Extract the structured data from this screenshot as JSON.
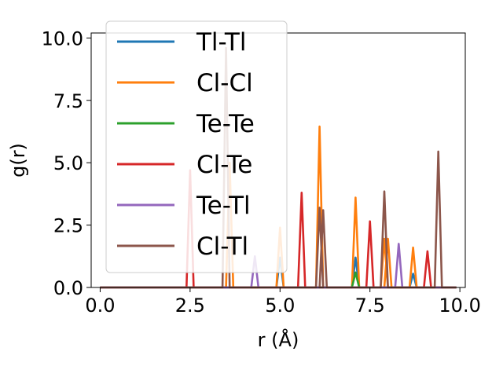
{
  "chart_data": {
    "type": "line",
    "xlabel": "r (Å)",
    "ylabel": "g(r)",
    "xlim": [
      -0.25,
      10.15
    ],
    "ylim": [
      0,
      10.2
    ],
    "xticks": [
      "0.0",
      "2.5",
      "5.0",
      "7.5",
      "10.0"
    ],
    "yticks": [
      "0.0",
      "2.5",
      "5.0",
      "7.5",
      "10.0"
    ],
    "legend_position": "upper-left",
    "grid": false,
    "series": [
      {
        "name": "Tl-Tl",
        "color": "#1f77b4",
        "peaks": [
          [
            5.0,
            1.2
          ],
          [
            7.1,
            1.2
          ],
          [
            8.7,
            0.55
          ]
        ]
      },
      {
        "name": "Cl-Cl",
        "color": "#ff7f0e",
        "peaks": [
          [
            3.6,
            5.0
          ],
          [
            5.0,
            2.4
          ],
          [
            6.1,
            6.45
          ],
          [
            7.1,
            3.6
          ],
          [
            7.9,
            1.95
          ],
          [
            8.0,
            1.95
          ],
          [
            8.7,
            1.6
          ]
        ]
      },
      {
        "name": "Te-Te",
        "color": "#2ca02c",
        "peaks": [
          [
            7.1,
            0.6
          ]
        ]
      },
      {
        "name": "Cl-Te",
        "color": "#d62728",
        "peaks": [
          [
            2.5,
            4.7
          ],
          [
            5.6,
            3.8
          ],
          [
            7.5,
            2.65
          ],
          [
            9.1,
            1.45
          ]
        ]
      },
      {
        "name": "Te-Tl",
        "color": "#9467bd",
        "peaks": [
          [
            4.3,
            1.25
          ],
          [
            8.3,
            1.75
          ]
        ]
      },
      {
        "name": "Cl-Tl",
        "color": "#8c564b",
        "peaks": [
          [
            3.5,
            9.6
          ],
          [
            6.1,
            3.2
          ],
          [
            6.2,
            3.1
          ],
          [
            7.9,
            3.85
          ],
          [
            9.4,
            5.45
          ]
        ]
      }
    ]
  }
}
